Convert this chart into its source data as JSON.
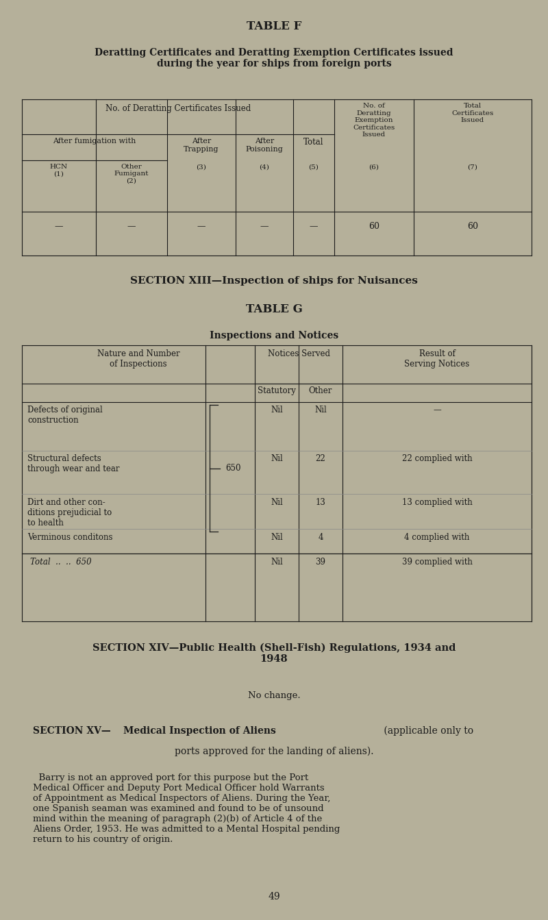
{
  "bg_color": "#b5b09a",
  "text_color": "#1a1a1a",
  "page_width": 8.0,
  "page_height": 13.43,
  "dpi": 100,
  "table_f": {
    "title": "TABLE F",
    "subtitle": "Deratting Certificates and Deratting Exemption Certificates issued\nduring the year for ships from foreign ports",
    "data_row": [
      "—",
      "—",
      "—",
      "—",
      "—",
      "60",
      "60"
    ]
  },
  "section_xiii": {
    "heading": "SECTION XIII—Inspection of ships for Nuisances",
    "table_title": "TABLE G",
    "table_subtitle": "Inspections and Notices"
  },
  "section_xiv": {
    "heading": "SECTION XIV—Public Health (Shell-Fish) Regulations, 1934 and\n1948",
    "text": "No change."
  },
  "section_xv": {
    "heading_bold": "SECTION XV—Medical Inspection of Aliens",
    "heading_normal": " (applicable only to\nports approved for the landing of aliens).",
    "paragraph": "  Barry is not an approved port for this purpose but the Port\nMedical Officer and Deputy Port Medical Officer hold Warrants\nof Appointment as Medical Inspectors of Aliens. During the Year,\none Spanish seaman was examined and found to be of unsound\nmind within the meaning of paragraph (2)(b) of Article 4 of the\nAliens Order, 1953. He was admitted to a Mental Hospital pending\nreturn to his country of origin."
  },
  "page_number": "49"
}
